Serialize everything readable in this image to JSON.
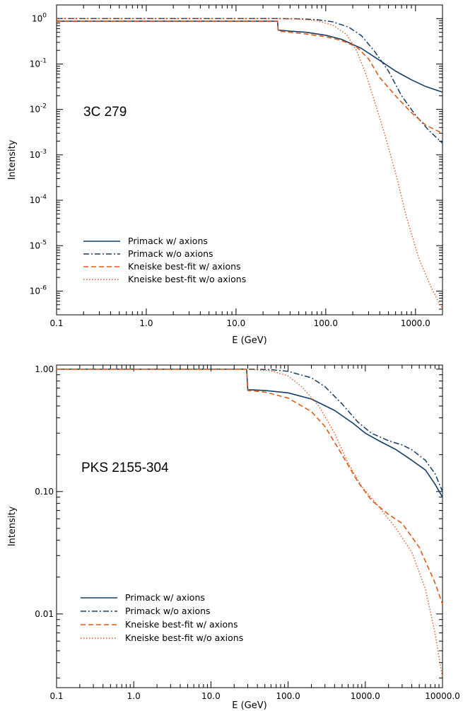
{
  "colors": {
    "navy": "#123d66",
    "orange": "#dc5a1a"
  },
  "chart_data": [
    {
      "type": "line",
      "source_label": "3C 279",
      "xlabel": "E (GeV)",
      "ylabel": "Intensity",
      "x_scale": "log",
      "y_scale": "log",
      "xlim": [
        0.1,
        2000
      ],
      "ylim": [
        3e-07,
        2
      ],
      "x_ticks": [
        {
          "value": 0.1,
          "label": "0.1"
        },
        {
          "value": 1,
          "label": "1.0"
        },
        {
          "value": 10,
          "label": "10.0"
        },
        {
          "value": 100,
          "label": "100.0"
        },
        {
          "value": 1000,
          "label": "1000.0"
        }
      ],
      "y_ticks": [
        {
          "value": 1,
          "base": "10",
          "exp": "0"
        },
        {
          "value": 0.1,
          "base": "10",
          "exp": "-1"
        },
        {
          "value": 0.01,
          "base": "10",
          "exp": "-2"
        },
        {
          "value": 0.001,
          "base": "10",
          "exp": "-3"
        },
        {
          "value": 0.0001,
          "base": "10",
          "exp": "-4"
        },
        {
          "value": 1e-05,
          "base": "10",
          "exp": "-5"
        },
        {
          "value": 1e-06,
          "base": "10",
          "exp": "-6"
        }
      ],
      "legend_position": "bottom-left",
      "series": [
        {
          "name": "Primack w/ axions",
          "color": "navy",
          "style": "solid",
          "x": [
            0.1,
            29,
            29.5,
            40,
            60,
            100,
            150,
            250,
            400,
            600,
            900,
            1300,
            2000
          ],
          "y": [
            0.88,
            0.88,
            0.56,
            0.53,
            0.5,
            0.43,
            0.35,
            0.22,
            0.12,
            0.07,
            0.045,
            0.032,
            0.024
          ]
        },
        {
          "name": "Primack w/o axions",
          "color": "navy",
          "style": "dashdot",
          "x": [
            0.1,
            30,
            50,
            80,
            120,
            180,
            250,
            350,
            500,
            700,
            1000,
            1400,
            2000
          ],
          "y": [
            1.0,
            1.0,
            0.99,
            0.95,
            0.85,
            0.65,
            0.42,
            0.19,
            0.07,
            0.02,
            0.0075,
            0.0035,
            0.0018
          ]
        },
        {
          "name": "Kneiske best-fit w/ axions",
          "color": "orange",
          "style": "dashed",
          "x": [
            0.1,
            29,
            29.5,
            40,
            60,
            100,
            150,
            220,
            300,
            400,
            600,
            900,
            1300,
            2000
          ],
          "y": [
            0.88,
            0.88,
            0.53,
            0.5,
            0.46,
            0.4,
            0.33,
            0.24,
            0.13,
            0.05,
            0.02,
            0.0085,
            0.0045,
            0.003
          ]
        },
        {
          "name": "Kneiske best-fit w/o axions",
          "color": "orange",
          "style": "dotted",
          "x": [
            0.1,
            30,
            50,
            80,
            120,
            170,
            220,
            280,
            350,
            450,
            600,
            800,
            1100,
            1500,
            2000
          ],
          "y": [
            1.0,
            1.0,
            0.98,
            0.9,
            0.72,
            0.45,
            0.2,
            0.06,
            0.015,
            0.003,
            0.0004,
            4e-05,
            5e-06,
            1.2e-06,
            4e-07
          ]
        }
      ]
    },
    {
      "type": "line",
      "source_label": "PKS 2155-304",
      "xlabel": "E (GeV)",
      "ylabel": "Intensity",
      "x_scale": "log",
      "y_scale": "log",
      "xlim": [
        0.1,
        10000
      ],
      "ylim": [
        0.0025,
        1.08
      ],
      "x_ticks": [
        {
          "value": 0.1,
          "label": "0.1"
        },
        {
          "value": 1,
          "label": "1.0"
        },
        {
          "value": 10,
          "label": "10.0"
        },
        {
          "value": 100,
          "label": "100.0"
        },
        {
          "value": 1000,
          "label": "1000.0"
        },
        {
          "value": 10000,
          "label": "10000.0"
        }
      ],
      "y_ticks": [
        {
          "value": 1,
          "label": "1.00"
        },
        {
          "value": 0.1,
          "label": "0.10"
        },
        {
          "value": 0.01,
          "label": "0.01"
        }
      ],
      "legend_position": "bottom-left",
      "series": [
        {
          "name": "Primack w/ axions",
          "color": "navy",
          "style": "solid",
          "x": [
            0.1,
            29,
            30,
            50,
            100,
            200,
            400,
            700,
            1000,
            1500,
            2500,
            4000,
            6000,
            8000,
            10000
          ],
          "y": [
            1.0,
            1.0,
            0.68,
            0.67,
            0.64,
            0.57,
            0.46,
            0.36,
            0.3,
            0.26,
            0.22,
            0.18,
            0.15,
            0.115,
            0.09
          ]
        },
        {
          "name": "Primack w/o axions",
          "color": "navy",
          "style": "dashdot",
          "x": [
            0.1,
            30,
            60,
            100,
            200,
            300,
            500,
            800,
            1200,
            2000,
            3000,
            4000,
            6000,
            8000,
            10000
          ],
          "y": [
            1.0,
            1.0,
            0.99,
            0.96,
            0.85,
            0.72,
            0.52,
            0.37,
            0.3,
            0.26,
            0.24,
            0.22,
            0.18,
            0.14,
            0.1
          ]
        },
        {
          "name": "Kneiske best-fit w/ axions",
          "color": "orange",
          "style": "dashed",
          "x": [
            0.1,
            29,
            30,
            50,
            100,
            200,
            300,
            500,
            800,
            1200,
            2000,
            3000,
            5000,
            8000,
            10000
          ],
          "y": [
            1.0,
            1.0,
            0.67,
            0.65,
            0.58,
            0.45,
            0.34,
            0.2,
            0.12,
            0.085,
            0.065,
            0.055,
            0.035,
            0.018,
            0.012
          ]
        },
        {
          "name": "Kneiske best-fit w/o axions",
          "color": "orange",
          "style": "dotted",
          "x": [
            0.1,
            30,
            60,
            100,
            150,
            250,
            400,
            600,
            900,
            1500,
            2500,
            4000,
            6000,
            8000,
            10000
          ],
          "y": [
            1.0,
            1.0,
            0.97,
            0.88,
            0.72,
            0.5,
            0.3,
            0.17,
            0.11,
            0.075,
            0.05,
            0.032,
            0.016,
            0.007,
            0.003
          ]
        }
      ]
    }
  ]
}
